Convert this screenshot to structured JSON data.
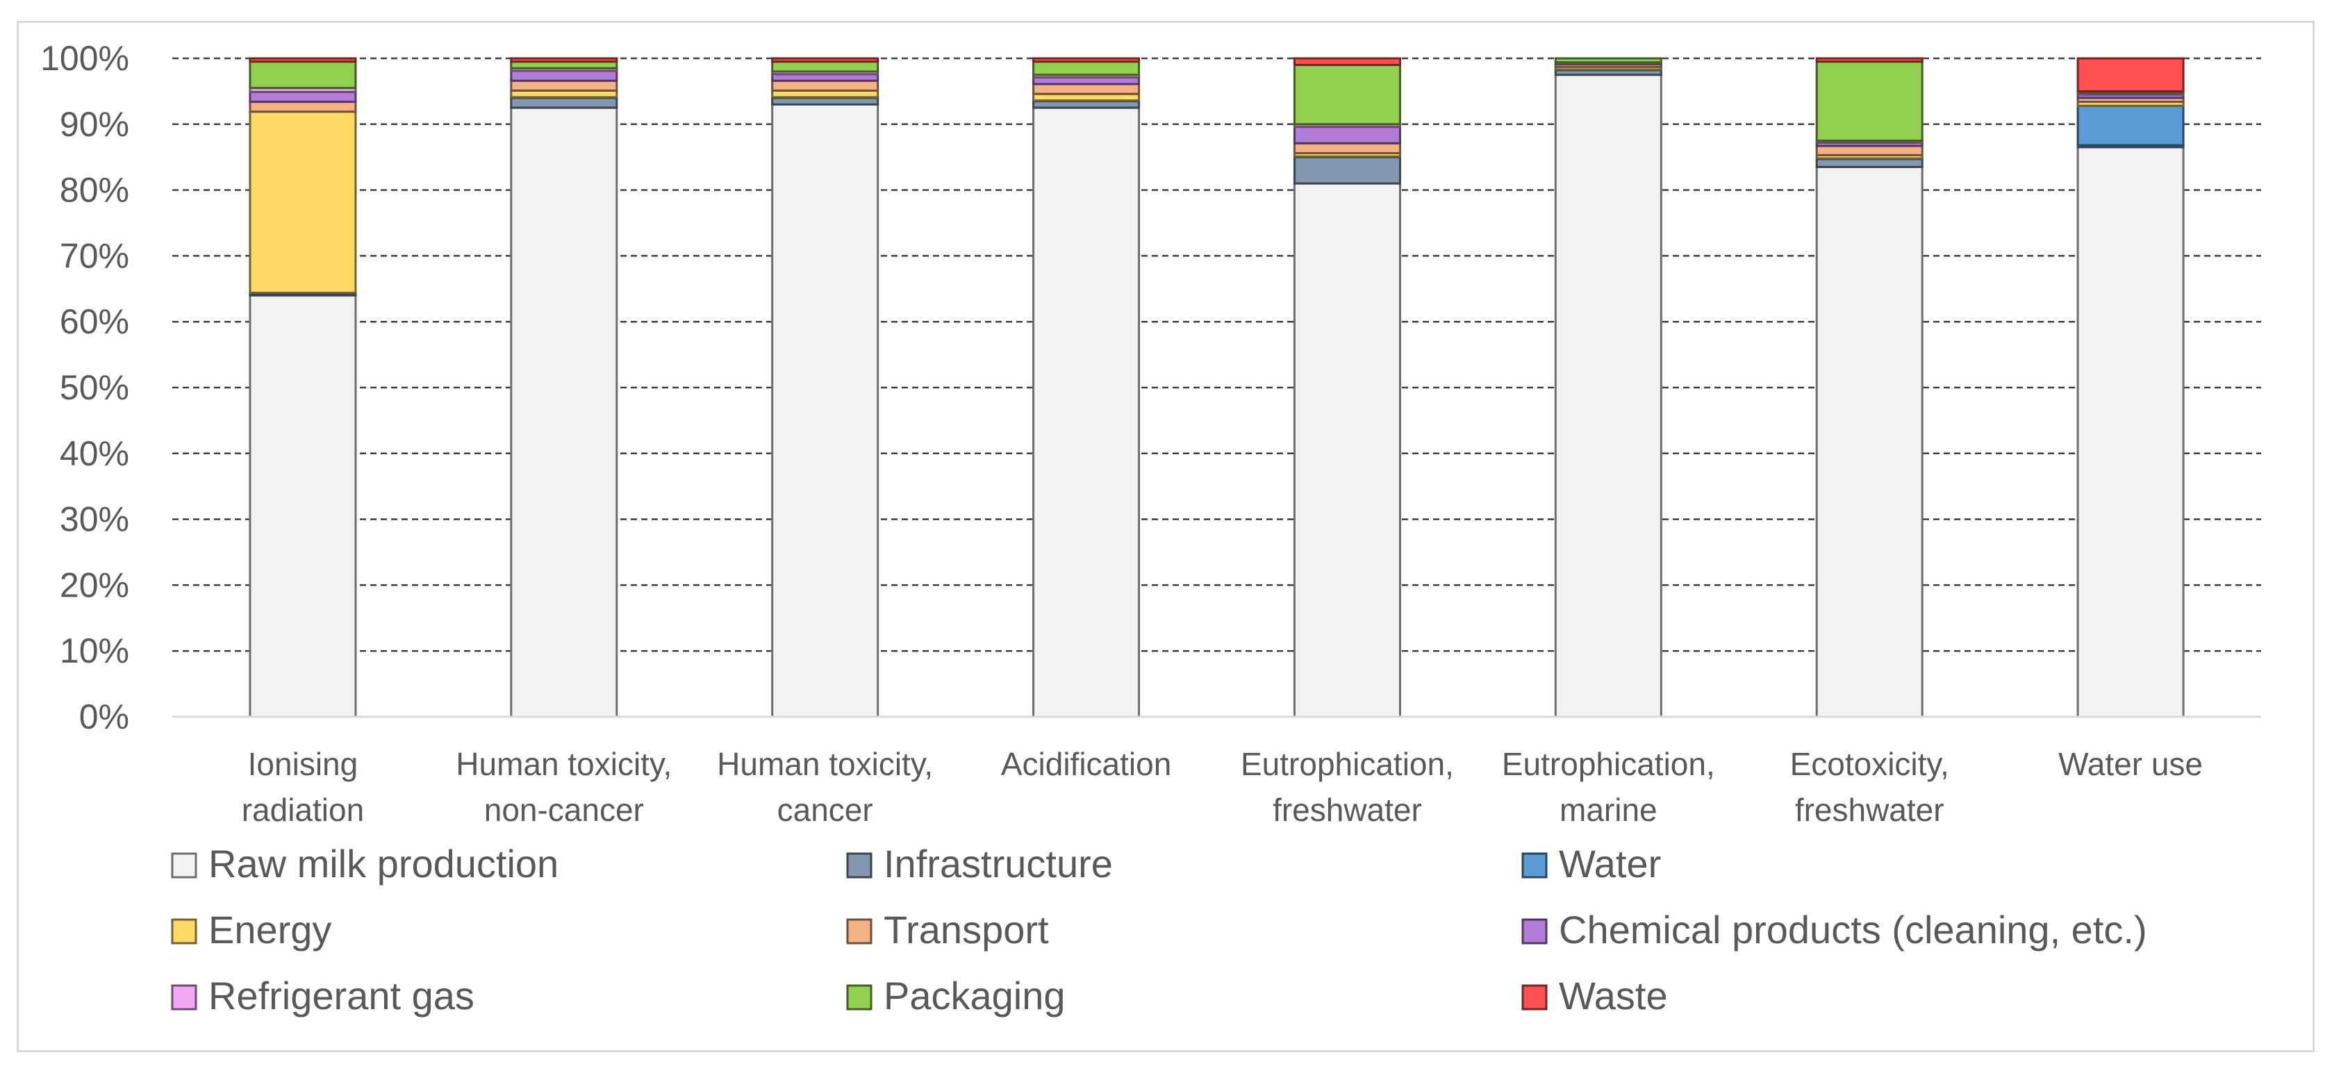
{
  "chart_data": {
    "type": "bar",
    "stacked": true,
    "percent": true,
    "title": "",
    "xlabel": "",
    "ylabel": "",
    "ylim": [
      0,
      100
    ],
    "yticks": [
      "0%",
      "10%",
      "20%",
      "30%",
      "40%",
      "50%",
      "60%",
      "70%",
      "80%",
      "90%",
      "100%"
    ],
    "grid": true,
    "legend_position": "bottom",
    "categories": [
      [
        "Ionising",
        "radiation"
      ],
      [
        "Human toxicity,",
        "non-cancer"
      ],
      [
        "Human toxicity,",
        "cancer"
      ],
      [
        "Acidification"
      ],
      [
        "Eutrophication,",
        "freshwater"
      ],
      [
        "Eutrophication,",
        "marine"
      ],
      [
        "Ecotoxicity,",
        "freshwater"
      ],
      [
        "Water use"
      ]
    ],
    "series": [
      {
        "name": "Raw milk production",
        "color": "#f2f2f2",
        "values": [
          64.0,
          92.5,
          93.0,
          92.5,
          81.0,
          97.5,
          83.5,
          86.5
        ]
      },
      {
        "name": "Infrastructure",
        "color": "#8497b0",
        "values": [
          0.3,
          1.5,
          1.0,
          1.0,
          4.0,
          0.7,
          1.2,
          0.3
        ]
      },
      {
        "name": "Water",
        "color": "#5b9bd5",
        "values": [
          0.1,
          0.1,
          0.1,
          0.1,
          0.1,
          0.1,
          0.1,
          6.0
        ]
      },
      {
        "name": "Energy",
        "color": "#ffd966",
        "values": [
          27.5,
          1.0,
          1.0,
          1.0,
          0.5,
          0.4,
          0.5,
          0.6
        ]
      },
      {
        "name": "Transport",
        "color": "#f4b183",
        "values": [
          1.5,
          1.5,
          1.5,
          1.5,
          1.5,
          0.4,
          1.4,
          0.6
        ]
      },
      {
        "name": "Chemical products (cleaning, etc.)",
        "color": "#b07cd8",
        "values": [
          1.5,
          1.5,
          1.0,
          1.0,
          2.5,
          0.2,
          0.5,
          0.5
        ]
      },
      {
        "name": "Refrigerant gas",
        "color": "#f2a8f2",
        "values": [
          0.6,
          0.4,
          0.4,
          0.4,
          0.4,
          0.1,
          0.3,
          0.3
        ]
      },
      {
        "name": "Packaging",
        "color": "#92d050",
        "values": [
          4.0,
          1.0,
          1.5,
          2.0,
          9.0,
          0.6,
          12.0,
          0.2
        ]
      },
      {
        "name": "Waste",
        "color": "#ff5050",
        "values": [
          0.5,
          0.5,
          0.5,
          0.5,
          1.0,
          0.0,
          0.5,
          5.0
        ]
      }
    ],
    "legend_order": [
      "Raw milk production",
      "Infrastructure",
      "Water",
      "Energy",
      "Transport",
      "Chemical products (cleaning, etc.)",
      "Refrigerant gas",
      "Packaging",
      "Waste"
    ]
  }
}
